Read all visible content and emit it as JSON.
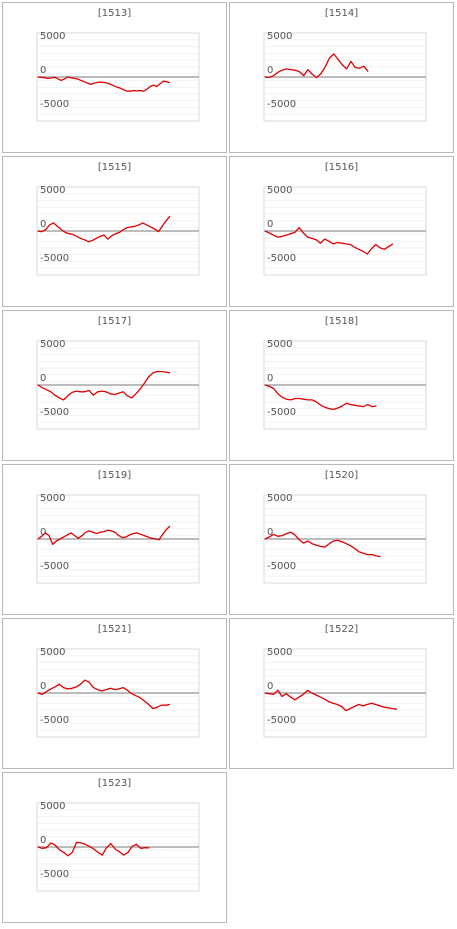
{
  "chart_data": [
    {
      "type": "line",
      "title": "[1513]",
      "yticks": [
        5000,
        0,
        -5000
      ],
      "ylim": [
        -6500,
        6500
      ],
      "values": [
        0,
        -50,
        -100,
        -200,
        -150,
        -50,
        -250,
        -500,
        -300,
        0,
        -100,
        -200,
        -300,
        -500,
        -700,
        -900,
        -1100,
        -900,
        -800,
        -750,
        -800,
        -900,
        -1100,
        -1300,
        -1500,
        -1650,
        -1900,
        -2100,
        -2100,
        -2000,
        -2050,
        -2000,
        -2100,
        -1800,
        -1400,
        -1200,
        -1400,
        -1000,
        -600,
        -700,
        -850
      ]
    },
    {
      "type": "line",
      "title": "[1514]",
      "yticks": [
        5000,
        0,
        -5000
      ],
      "ylim": [
        -6500,
        6500
      ],
      "values": [
        0,
        -50,
        200,
        700,
        1000,
        1200,
        1100,
        1000,
        800,
        200,
        1100,
        400,
        -100,
        500,
        1500,
        2800,
        3400,
        2600,
        1800,
        1200,
        2300,
        1400,
        1300,
        1600,
        800
      ]
    },
    {
      "type": "line",
      "title": "[1515]",
      "yticks": [
        5000,
        0,
        -5000
      ],
      "ylim": [
        -6500,
        6500
      ],
      "values": [
        0,
        -100,
        200,
        900,
        1200,
        700,
        200,
        -200,
        -400,
        -500,
        -800,
        -1100,
        -1300,
        -1600,
        -1400,
        -1100,
        -800,
        -600,
        -1200,
        -700,
        -400,
        -200,
        200,
        500,
        600,
        700,
        900,
        1200,
        900,
        600,
        300,
        -100,
        700,
        1500,
        2200
      ]
    },
    {
      "type": "line",
      "title": "[1516]",
      "yticks": [
        5000,
        0,
        -5000
      ],
      "ylim": [
        -6500,
        6500
      ],
      "values": [
        0,
        -300,
        -600,
        -900,
        -800,
        -600,
        -400,
        -200,
        500,
        -300,
        -900,
        -1100,
        -1300,
        -1800,
        -1200,
        -1500,
        -1900,
        -1700,
        -1800,
        -1900,
        -2000,
        -2400,
        -2700,
        -3000,
        -3400,
        -2600,
        -2000,
        -2500,
        -2700,
        -2300,
        -1900
      ]
    },
    {
      "type": "line",
      "title": "[1517]",
      "yticks": [
        5000,
        0,
        -5000
      ],
      "ylim": [
        -6500,
        6500
      ],
      "values": [
        0,
        -400,
        -700,
        -1000,
        -1500,
        -1900,
        -2200,
        -1600,
        -1100,
        -900,
        -1000,
        -1000,
        -800,
        -1500,
        -1000,
        -900,
        -1000,
        -1300,
        -1400,
        -1200,
        -1000,
        -1600,
        -1900,
        -1300,
        -600,
        300,
        1200,
        1800,
        2000,
        2000,
        1900,
        1800
      ]
    },
    {
      "type": "line",
      "title": "[1518]",
      "yticks": [
        5000,
        0,
        -5000
      ],
      "ylim": [
        -6500,
        6500
      ],
      "values": [
        0,
        -200,
        -500,
        -1300,
        -1800,
        -2100,
        -2200,
        -2000,
        -2000,
        -2100,
        -2200,
        -2200,
        -2500,
        -3000,
        -3300,
        -3500,
        -3600,
        -3400,
        -3100,
        -2700,
        -2900,
        -3000,
        -3100,
        -3200,
        -2900,
        -3200,
        -3100
      ]
    },
    {
      "type": "line",
      "title": "[1519]",
      "yticks": [
        5000,
        0,
        -5000
      ],
      "ylim": [
        -6500,
        6500
      ],
      "values": [
        0,
        400,
        900,
        500,
        -800,
        -300,
        0,
        300,
        600,
        900,
        500,
        100,
        500,
        1000,
        1200,
        1000,
        800,
        1000,
        1100,
        1300,
        1200,
        1000,
        500,
        200,
        300,
        600,
        800,
        900,
        700,
        500,
        300,
        100,
        0,
        -100,
        700,
        1400,
        1900
      ]
    },
    {
      "type": "line",
      "title": "[1520]",
      "yticks": [
        5000,
        0,
        -5000
      ],
      "ylim": [
        -6500,
        6500
      ],
      "values": [
        0,
        300,
        700,
        400,
        500,
        800,
        1000,
        600,
        -100,
        -600,
        -300,
        -700,
        -900,
        -1100,
        -1200,
        -700,
        -300,
        -200,
        -400,
        -700,
        -1000,
        -1400,
        -1900,
        -2100,
        -2300,
        -2300,
        -2500,
        -2600
      ]
    },
    {
      "type": "line",
      "title": "[1521]",
      "yticks": [
        5000,
        0,
        -5000
      ],
      "ylim": [
        -6500,
        6500
      ],
      "values": [
        0,
        -200,
        200,
        600,
        900,
        1300,
        800,
        600,
        700,
        900,
        1300,
        1900,
        1600,
        800,
        500,
        300,
        500,
        700,
        500,
        600,
        800,
        400,
        -100,
        -400,
        -700,
        -1200,
        -1700,
        -2300,
        -2100,
        -1800,
        -1800,
        -1700
      ]
    },
    {
      "type": "line",
      "title": "[1522]",
      "yticks": [
        5000,
        0,
        -5000
      ],
      "ylim": [
        -6500,
        6500
      ],
      "values": [
        0,
        -100,
        -200,
        400,
        -500,
        -100,
        -600,
        -1000,
        -600,
        -200,
        400,
        0,
        -300,
        -600,
        -900,
        -1300,
        -1500,
        -1700,
        -2000,
        -2600,
        -2300,
        -2000,
        -1700,
        -1900,
        -1700,
        -1500,
        -1700,
        -1900,
        -2100,
        -2200,
        -2300,
        -2400
      ]
    },
    {
      "type": "line",
      "title": "[1523]",
      "yticks": [
        5000,
        0,
        -5000
      ],
      "ylim": [
        -6500,
        6500
      ],
      "values": [
        0,
        -200,
        -100,
        600,
        300,
        -400,
        -800,
        -1300,
        -800,
        700,
        600,
        400,
        100,
        -300,
        -800,
        -1200,
        -100,
        500,
        -300,
        -700,
        -1200,
        -800,
        100,
        400,
        -200,
        -100,
        -150
      ]
    }
  ],
  "colors": {
    "line": "#e00000",
    "zero_line": "#a6a6a6",
    "grid": "#ececec",
    "tick_text": "#555555",
    "border": "#b8b8b8"
  }
}
